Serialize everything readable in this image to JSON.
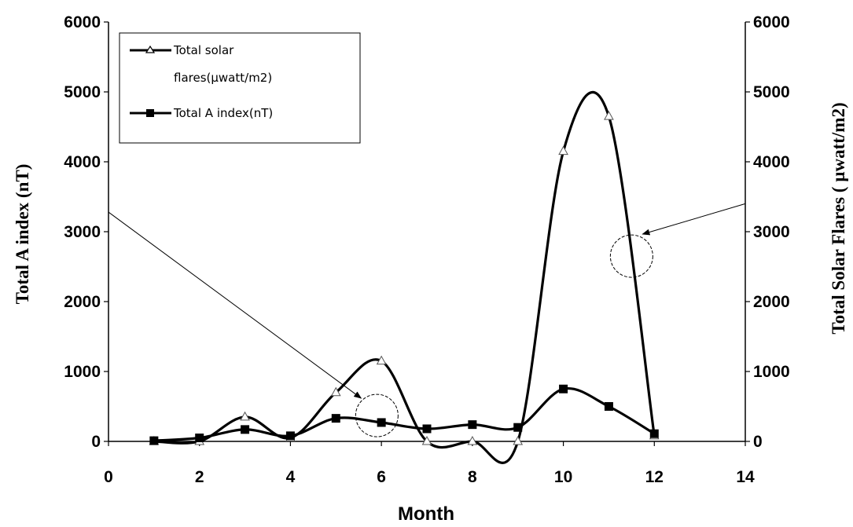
{
  "chart_data": {
    "type": "line",
    "xlabel": "Month",
    "ylabel_left": "Total  A index (nT)",
    "ylabel_right": "Total Solar Flares ( µwatt/m2)",
    "xlim": [
      0,
      14
    ],
    "ylim_left": [
      0,
      6000
    ],
    "ylim_right": [
      0,
      6000
    ],
    "x_ticks": [
      "0",
      "2",
      "4",
      "6",
      "8",
      "10",
      "12",
      "14"
    ],
    "y_ticks_left": [
      "0",
      "1000",
      "2000",
      "3000",
      "4000",
      "5000",
      "6000"
    ],
    "y_ticks_right": [
      "0",
      "1000",
      "2000",
      "3000",
      "4000",
      "5000",
      "6000"
    ],
    "grid": false,
    "legend_position": "top-left",
    "series": [
      {
        "name": "Total solar flares(µwatt/m2)",
        "legend_lines": [
          "Total solar",
          "flares(µwatt/m2)"
        ],
        "marker": "triangle",
        "axis": "right",
        "x": [
          1,
          2,
          3,
          4,
          5,
          6,
          7,
          8,
          9,
          10,
          11,
          12
        ],
        "values": [
          0,
          0,
          350,
          50,
          700,
          1150,
          0,
          0,
          0,
          4150,
          4650,
          80
        ]
      },
      {
        "name": "Total A index(nT)",
        "legend_lines": [
          "Total A index(nT)"
        ],
        "marker": "square",
        "axis": "left",
        "x": [
          1,
          2,
          3,
          4,
          5,
          6,
          7,
          8,
          9,
          10,
          11,
          12
        ],
        "values": [
          10,
          50,
          170,
          80,
          330,
          270,
          180,
          240,
          200,
          750,
          500,
          110
        ]
      }
    ],
    "annotations": [
      "circle-near-month-6",
      "circle-near-month-11.5"
    ]
  }
}
